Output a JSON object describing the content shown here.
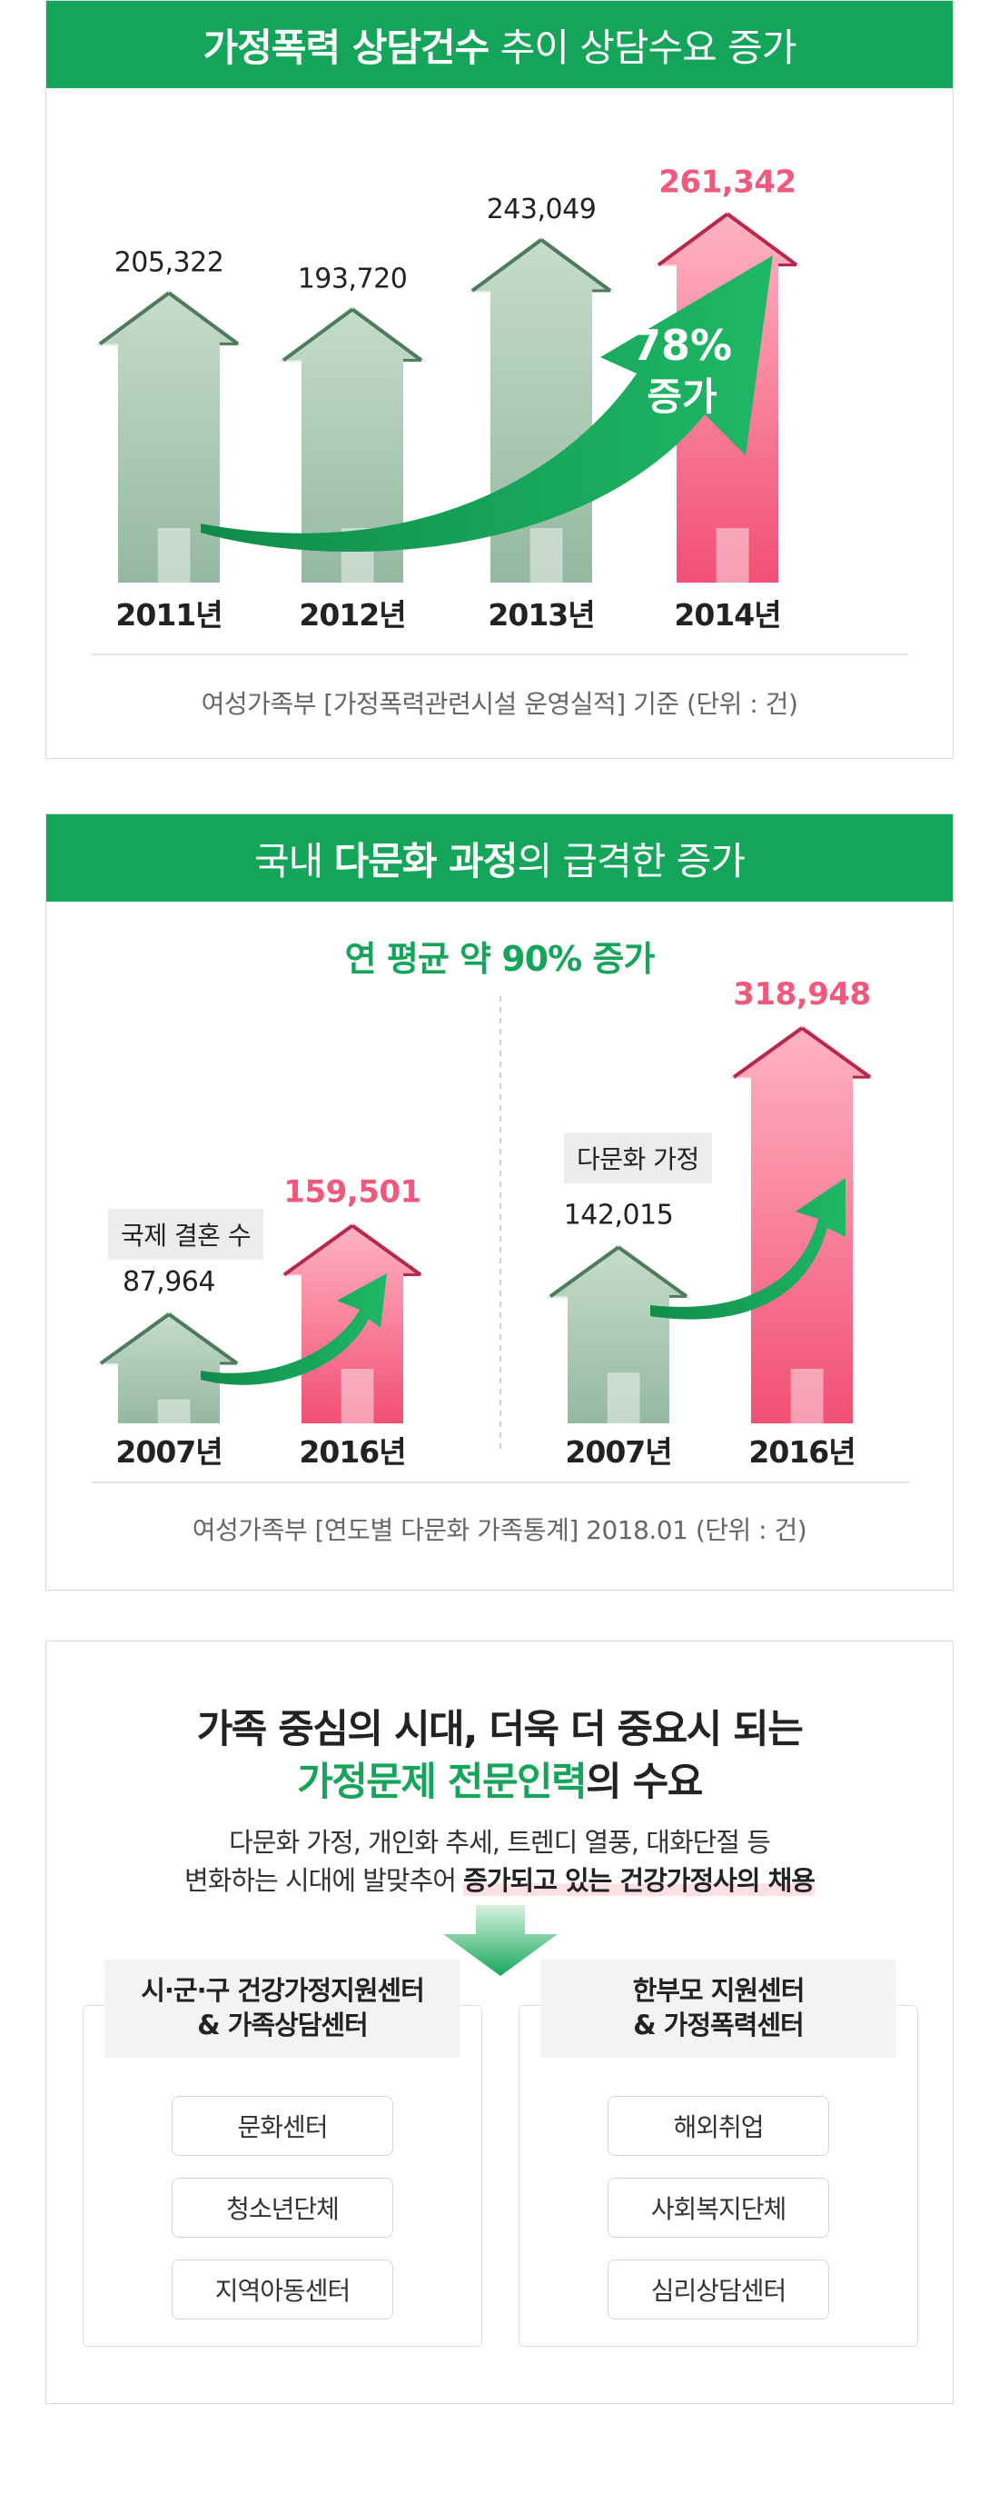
{
  "panel1": {
    "title_bold": "가정폭력 상담건수",
    "title_normal": " 추이 상담수요 증가",
    "badge": {
      "percent": "78%",
      "word": "증가"
    },
    "source": "여성가족부 [가정폭력관련시설 운영실적] 기준 (단위 : 건)"
  },
  "panel2": {
    "title_pre": "국내 ",
    "title_bold": "다문화 과정",
    "title_post": "의 급격한 증가",
    "subtitle": "연 평균 약 90% 증가",
    "source": "여성가족부 [연도별 다문화 가족통계] 2018.01 (단위 : 건)"
  },
  "panel3": {
    "headline1": "가족 중심의 시대, 더욱 더 중요시 되는",
    "headline2_green": "가정문제 전문인력",
    "headline2_tail": "의 수요",
    "desc1": "다문화 가정, 개인화 추세, 트렌디 열풍, 대화단절 등",
    "desc2_pre": "변화하는 시대에 발맞추어 ",
    "desc2_em": "증가되고 있는 건강가정사의 채용",
    "left": {
      "title": "시·군·구 건강가정지원센터\n& 가족상담센터",
      "items": [
        "문화센터",
        "청소년단체",
        "지역아동센터"
      ]
    },
    "right": {
      "title": "한부모 지원센터\n& 가정폭력센터",
      "items": [
        "해외취업",
        "사회복지단체",
        "심리상담센터"
      ]
    }
  },
  "colors": {
    "green": "#15a55a",
    "pink": "#f0587c",
    "sage": "#a9c8b2"
  },
  "chart_data": [
    {
      "type": "bar",
      "title": "가정폭력 상담건수 추이 상담수요 증가",
      "categories": [
        "2011년",
        "2012년",
        "2013년",
        "2014년"
      ],
      "values": [
        205322,
        193720,
        243049,
        261342
      ],
      "value_labels": [
        "205,322",
        "193,720",
        "243,049",
        "261,342"
      ],
      "highlight_index": 3
    },
    {
      "type": "bar",
      "title": "국제 결혼 수",
      "categories": [
        "2007년",
        "2016년"
      ],
      "values": [
        87964,
        159501
      ],
      "value_labels": [
        "87,964",
        "159,501"
      ],
      "highlight_index": 1
    },
    {
      "type": "bar",
      "title": "다문화 가정",
      "categories": [
        "2007년",
        "2016년"
      ],
      "values": [
        142015,
        318948
      ],
      "value_labels": [
        "142,015",
        "318,948"
      ],
      "highlight_index": 1
    }
  ]
}
